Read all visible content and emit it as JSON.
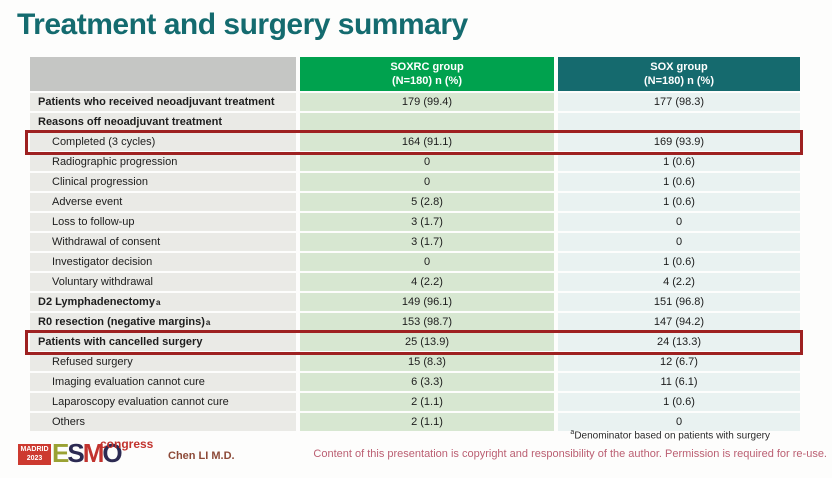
{
  "title": "Treatment and surgery summary",
  "table": {
    "columns": [
      {
        "group": "SOXRC group",
        "sub": "(N=180)  n (%)"
      },
      {
        "group": "SOX group",
        "sub": "(N=180)  n (%)"
      }
    ],
    "rows": [
      {
        "label": "Patients who received neoadjuvant treatment",
        "soxrc": "179 (99.4)",
        "sox": "177 (98.3)"
      },
      {
        "label": "Reasons off neoadjuvant treatment",
        "soxrc": "",
        "sox": ""
      },
      {
        "label": "Completed (3 cycles)",
        "soxrc": "164 (91.1)",
        "sox": "169 (93.9)"
      },
      {
        "label": "Radiographic progression",
        "soxrc": "0",
        "sox": "1 (0.6)"
      },
      {
        "label": "Clinical progression",
        "soxrc": "0",
        "sox": "1 (0.6)"
      },
      {
        "label": "Adverse event",
        "soxrc": "5 (2.8)",
        "sox": "1 (0.6)"
      },
      {
        "label": "Loss to follow-up",
        "soxrc": "3 (1.7)",
        "sox": "0"
      },
      {
        "label": "Withdrawal of consent",
        "soxrc": "3 (1.7)",
        "sox": "0"
      },
      {
        "label": "Investigator decision",
        "soxrc": "0",
        "sox": "1 (0.6)"
      },
      {
        "label": "Voluntary withdrawal",
        "soxrc": "4 (2.2)",
        "sox": "4 (2.2)"
      },
      {
        "label": "D2 Lymphadenectomy",
        "sup": "a",
        "soxrc": "149 (96.1)",
        "sox": "151 (96.8)"
      },
      {
        "label": "R0 resection (negative margins)",
        "sup": "a",
        "soxrc": "153 (98.7)",
        "sox": "147 (94.2)"
      },
      {
        "label": "Patients with cancelled surgery",
        "soxrc": "25 (13.9)",
        "sox": "24 (13.3)"
      },
      {
        "label": "Refused surgery",
        "soxrc": "15 (8.3)",
        "sox": "12 (6.7)"
      },
      {
        "label": "Imaging evaluation cannot cure",
        "soxrc": "6 (3.3)",
        "sox": "11 (6.1)"
      },
      {
        "label": "Laparoscopy evaluation cannot cure",
        "soxrc": "2 (1.1)",
        "sox": "1 (0.6)"
      },
      {
        "label": "Others",
        "soxrc": "2 (1.1)",
        "sox": "0"
      }
    ]
  },
  "footer": {
    "logo": {
      "city": "MADRID",
      "year": "2023",
      "letters": [
        "E",
        "S",
        "M",
        "O"
      ],
      "congress": "congress"
    },
    "author": "Chen LI M.D.",
    "footnote_sup": "a",
    "footnote": "Denominator based on patients with surgery",
    "copyright": "Content of this presentation is copyright and responsibility of the author.  Permission is required for re-use."
  },
  "colors": {
    "title_teal": "#146b6f",
    "header_green": "#00a24e",
    "header_teal": "#156a6e",
    "header_gray": "#c5c6c4",
    "label_column_bg": "#eaeae6",
    "soxrc_column_bg": "#d7e7d1",
    "sox_column_bg": "#e9f2f1",
    "highlight_box_red": "#9e2121",
    "copyright_pink": "#bb5f72",
    "author_brown": "#8d4a38",
    "logo_red": "#cd3a30",
    "logo_olive": "#9aa233",
    "logo_navy": "#2c2a52"
  }
}
